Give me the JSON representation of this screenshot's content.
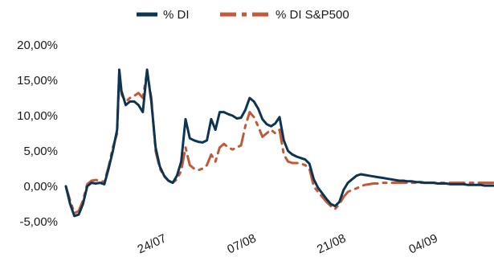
{
  "chart_data": {
    "type": "line",
    "title": "",
    "xlabel": "",
    "ylabel": "",
    "legend_position": "top",
    "grid": false,
    "ylim": [
      -5,
      20
    ],
    "yticks": [
      "-5,00%",
      "0,00%",
      "5,00%",
      "10,00%",
      "15,00%",
      "20,00%"
    ],
    "ytick_values": [
      -5,
      0,
      5,
      10,
      15,
      20
    ],
    "xlim": [
      0,
      100
    ],
    "xticks": [
      {
        "label": "24/07",
        "x": 20.5
      },
      {
        "label": "07/08",
        "x": 41.5
      },
      {
        "label": "21/08",
        "x": 62.5
      },
      {
        "label": "04/09",
        "x": 84
      }
    ],
    "series": [
      {
        "name": "% DI",
        "color": "#0d3551",
        "style": "solid",
        "x": [
          0,
          1,
          2,
          3,
          4,
          5,
          6,
          7,
          8,
          9,
          10,
          11,
          12,
          12.5,
          13,
          14,
          15,
          16,
          17,
          18,
          19,
          20,
          21,
          22,
          23,
          24,
          25,
          26,
          27,
          28,
          29,
          30,
          31,
          32,
          33,
          34,
          35,
          36,
          37,
          38,
          39,
          40,
          41,
          42,
          43,
          44,
          45,
          46,
          47,
          48,
          49,
          50,
          51,
          52,
          53,
          54,
          55,
          56,
          57,
          58,
          59,
          60,
          61,
          62,
          63,
          64,
          65,
          66,
          67,
          68,
          69,
          70,
          71,
          72,
          73,
          74,
          75,
          76,
          77,
          78,
          79,
          80,
          81,
          82,
          83,
          84,
          85,
          86,
          87,
          88,
          89,
          90,
          91,
          92,
          93,
          94,
          95,
          96,
          97,
          98,
          99,
          100
        ],
        "values": [
          0.0,
          -2.5,
          -4.2,
          -4.0,
          -2.5,
          0.0,
          0.5,
          0.4,
          0.5,
          0.3,
          2.5,
          5.0,
          8.0,
          16.5,
          13.5,
          11.5,
          12.0,
          12.0,
          11.5,
          10.5,
          16.5,
          12.0,
          5.5,
          2.8,
          1.5,
          0.8,
          0.5,
          1.5,
          3.5,
          9.5,
          6.8,
          6.5,
          6.3,
          6.2,
          6.5,
          9.5,
          8.0,
          10.5,
          10.5,
          10.2,
          10.0,
          9.6,
          9.7,
          10.8,
          12.5,
          12.0,
          11.0,
          9.5,
          8.8,
          8.5,
          8.9,
          9.8,
          6.5,
          5.0,
          4.5,
          4.2,
          4.0,
          3.8,
          3.2,
          1.0,
          -0.2,
          -1.0,
          -1.8,
          -2.5,
          -2.8,
          -2.2,
          -0.5,
          0.5,
          1.0,
          1.5,
          1.7,
          1.6,
          1.5,
          1.4,
          1.3,
          1.2,
          1.1,
          1.0,
          0.9,
          0.8,
          0.8,
          0.7,
          0.7,
          0.6,
          0.6,
          0.5,
          0.5,
          0.5,
          0.4,
          0.4,
          0.4,
          0.3,
          0.3,
          0.3,
          0.3,
          0.2,
          0.2,
          0.2,
          0.2,
          0.1,
          0.1,
          0.1
        ]
      },
      {
        "name": "% DI S&P500",
        "color": "#c05a38",
        "style": "dash-dot",
        "x": [
          0,
          1,
          2,
          3,
          4,
          5,
          6,
          7,
          8,
          9,
          10,
          11,
          12,
          12.5,
          13,
          14,
          15,
          16,
          17,
          18,
          19,
          20,
          21,
          22,
          23,
          24,
          25,
          26,
          27,
          28,
          29,
          30,
          31,
          32,
          33,
          34,
          35,
          36,
          37,
          38,
          39,
          40,
          41,
          42,
          43,
          44,
          45,
          46,
          47,
          48,
          49,
          50,
          51,
          52,
          53,
          54,
          55,
          56,
          57,
          58,
          59,
          60,
          61,
          62,
          63,
          64,
          65,
          66,
          67,
          68,
          69,
          70,
          71,
          72,
          73,
          74,
          75,
          76,
          77,
          78,
          79,
          80,
          81,
          82,
          83,
          84,
          85,
          86,
          87,
          88,
          89,
          90,
          91,
          92,
          93,
          94,
          95,
          96,
          97,
          98,
          99,
          100
        ],
        "values": [
          0.0,
          -2.0,
          -3.8,
          -3.5,
          -2.0,
          0.3,
          0.8,
          0.9,
          0.8,
          0.6,
          2.8,
          5.5,
          7.5,
          16.0,
          13.0,
          12.0,
          12.5,
          12.8,
          13.2,
          12.5,
          16.2,
          12.5,
          5.0,
          2.5,
          1.4,
          0.8,
          0.5,
          1.0,
          2.2,
          5.5,
          3.0,
          2.5,
          2.3,
          2.5,
          3.0,
          4.5,
          3.5,
          5.5,
          6.0,
          5.5,
          5.2,
          5.5,
          5.8,
          8.5,
          10.5,
          9.8,
          8.5,
          7.0,
          7.5,
          8.0,
          7.5,
          8.0,
          4.5,
          3.5,
          3.3,
          3.3,
          3.2,
          3.0,
          2.5,
          0.0,
          -0.8,
          -1.5,
          -2.2,
          -2.8,
          -3.2,
          -2.5,
          -1.5,
          -0.8,
          -0.5,
          -0.3,
          0.0,
          0.2,
          0.3,
          0.4,
          0.4,
          0.5,
          0.5,
          0.5,
          0.5,
          0.5,
          0.5,
          0.5,
          0.5,
          0.5,
          0.5,
          0.5,
          0.5,
          0.5,
          0.5,
          0.5,
          0.5,
          0.5,
          0.5,
          0.5,
          0.5,
          0.5,
          0.5,
          0.5,
          0.5,
          0.5,
          0.5,
          0.5
        ]
      }
    ]
  }
}
